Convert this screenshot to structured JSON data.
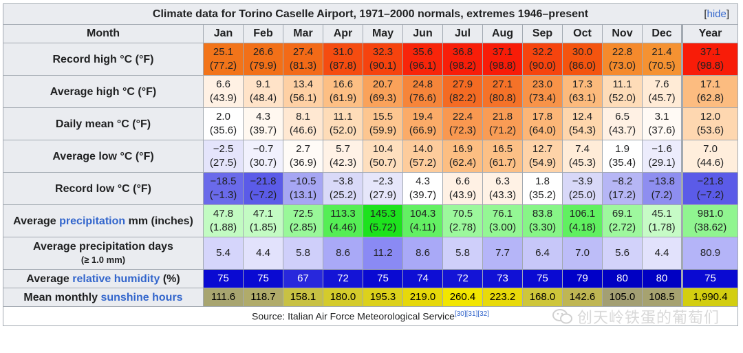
{
  "table": {
    "caption": "Climate data for Torino Caselle Airport, 1971–2000 normals, extremes 1946–present",
    "hide_label": "hide",
    "header": [
      "Month",
      "Jan",
      "Feb",
      "Mar",
      "Apr",
      "May",
      "Jun",
      "Jul",
      "Aug",
      "Sep",
      "Oct",
      "Nov",
      "Dec",
      "Year"
    ],
    "rows": [
      {
        "label_parts": [
          {
            "text": "Record high °C (°F)"
          }
        ],
        "cells": [
          [
            "25.1",
            "(77.2)",
            "#f2741a"
          ],
          [
            "26.6",
            "(79.9)",
            "#f27018"
          ],
          [
            "27.4",
            "(81.3)",
            "#f36a17"
          ],
          [
            "31.0",
            "(87.8)",
            "#f54c10"
          ],
          [
            "32.3",
            "(90.1)",
            "#f6430e"
          ],
          [
            "35.6",
            "(96.1)",
            "#f8250a"
          ],
          [
            "36.8",
            "(98.2)",
            "#f81e09"
          ],
          [
            "37.1",
            "(98.8)",
            "#f81c08"
          ],
          [
            "32.2",
            "(90.0)",
            "#f6440e"
          ],
          [
            "30.0",
            "(86.0)",
            "#f4540f"
          ],
          [
            "22.8",
            "(73.0)",
            "#f58a2c"
          ],
          [
            "21.4",
            "(70.5)",
            "#f59232"
          ],
          [
            "37.1",
            "(98.8)",
            "#f81c08"
          ]
        ]
      },
      {
        "label_parts": [
          {
            "text": "Average high °C (°F)"
          }
        ],
        "cells": [
          [
            "6.6",
            "(43.9)",
            "#fff1e4"
          ],
          [
            "9.1",
            "(48.4)",
            "#ffe3c8"
          ],
          [
            "13.4",
            "(56.1)",
            "#fed0a4"
          ],
          [
            "16.6",
            "(61.9)",
            "#fdbf84"
          ],
          [
            "20.7",
            "(69.3)",
            "#faa25a"
          ],
          [
            "24.8",
            "(76.6)",
            "#f6853a"
          ],
          [
            "27.9",
            "(82.2)",
            "#f46b23"
          ],
          [
            "27.1",
            "(80.8)",
            "#f57228"
          ],
          [
            "23.0",
            "(73.4)",
            "#f89348"
          ],
          [
            "17.3",
            "(63.1)",
            "#fcba7c"
          ],
          [
            "11.1",
            "(52.0)",
            "#fedcb8"
          ],
          [
            "7.6",
            "(45.7)",
            "#ffebd6"
          ],
          [
            "17.1",
            "(62.8)",
            "#fcbc80"
          ]
        ]
      },
      {
        "label_parts": [
          {
            "text": "Daily mean °C (°F)"
          }
        ],
        "cells": [
          [
            "2.0",
            "(35.6)",
            "#ffffff"
          ],
          [
            "4.3",
            "(39.7)",
            "#fff8f0"
          ],
          [
            "8.1",
            "(46.6)",
            "#ffe8d2"
          ],
          [
            "11.1",
            "(52.0)",
            "#fedcb8"
          ],
          [
            "15.5",
            "(59.9)",
            "#fdc690"
          ],
          [
            "19.4",
            "(66.9)",
            "#fbab68"
          ],
          [
            "22.4",
            "(72.3)",
            "#f99850"
          ],
          [
            "21.8",
            "(71.2)",
            "#f99c55"
          ],
          [
            "17.8",
            "(64.0)",
            "#fcb677"
          ],
          [
            "12.4",
            "(54.3)",
            "#fed6ac"
          ],
          [
            "6.5",
            "(43.7)",
            "#fff1e4"
          ],
          [
            "3.1",
            "(37.6)",
            "#fffaf5"
          ],
          [
            "12.0",
            "(53.6)",
            "#fed7b0"
          ]
        ]
      },
      {
        "label_parts": [
          {
            "text": "Average low °C (°F)"
          }
        ],
        "cells": [
          [
            "−2.5",
            "(27.5)",
            "#e4e4fb"
          ],
          [
            "−0.7",
            "(30.7)",
            "#f1f1fd"
          ],
          [
            "2.7",
            "(36.9)",
            "#fffbf7"
          ],
          [
            "5.7",
            "(42.3)",
            "#fff2e6"
          ],
          [
            "10.4",
            "(50.7)",
            "#fedfbe"
          ],
          [
            "14.0",
            "(57.2)",
            "#fdcc9c"
          ],
          [
            "16.9",
            "(62.4)",
            "#fcbe82"
          ],
          [
            "16.5",
            "(61.7)",
            "#fcc086"
          ],
          [
            "12.7",
            "(54.9)",
            "#fed3a8"
          ],
          [
            "7.4",
            "(45.3)",
            "#ffecd8"
          ],
          [
            "1.9",
            "(35.4)",
            "#ffffff"
          ],
          [
            "−1.6",
            "(29.1)",
            "#ececfc"
          ],
          [
            "7.0",
            "(44.6)",
            "#ffeedc"
          ]
        ]
      },
      {
        "label_parts": [
          {
            "text": "Record low °C (°F)"
          }
        ],
        "cells": [
          [
            "−18.5",
            "(−1.3)",
            "#6a6aea"
          ],
          [
            "−21.8",
            "(−7.2)",
            "#5b5be8"
          ],
          [
            "−10.5",
            "(13.1)",
            "#a6a6f3"
          ],
          [
            "−3.8",
            "(25.2)",
            "#d9d9f8"
          ],
          [
            "−2.3",
            "(27.9)",
            "#e6e6fa"
          ],
          [
            "4.3",
            "(39.7)",
            "#ffffff"
          ],
          [
            "6.6",
            "(43.9)",
            "#fff1e4"
          ],
          [
            "6.3",
            "(43.3)",
            "#fff2e5"
          ],
          [
            "1.8",
            "(35.2)",
            "#ffffff"
          ],
          [
            "−3.9",
            "(25.0)",
            "#d8d8f8"
          ],
          [
            "−8.2",
            "(17.2)",
            "#b6b6f5"
          ],
          [
            "−13.8",
            "(7.2)",
            "#8e8ef0"
          ],
          [
            "−21.8",
            "(−7.2)",
            "#5b5be8"
          ]
        ]
      },
      {
        "label_parts": [
          {
            "text": "Average "
          },
          {
            "text": "precipitation",
            "link": true
          },
          {
            "text": " mm (inches)"
          }
        ],
        "cells": [
          [
            "47.8",
            "(1.88)",
            "#c2fbc2"
          ],
          [
            "47.1",
            "(1.85)",
            "#c3fbc3"
          ],
          [
            "72.5",
            "(2.85)",
            "#99f899"
          ],
          [
            "113.3",
            "(4.46)",
            "#55ee55"
          ],
          [
            "145.3",
            "(5.72)",
            "#1de21d"
          ],
          [
            "104.3",
            "(4.11)",
            "#63f063"
          ],
          [
            "70.5",
            "(2.78)",
            "#9cf89c"
          ],
          [
            "76.1",
            "(3.00)",
            "#94f794"
          ],
          [
            "83.8",
            "(3.30)",
            "#87f587"
          ],
          [
            "106.1",
            "(4.18)",
            "#60f060"
          ],
          [
            "69.1",
            "(2.72)",
            "#9ef89e"
          ],
          [
            "45.1",
            "(1.78)",
            "#c6fbc6"
          ],
          [
            "981.0",
            "(38.62)",
            "#90f590"
          ]
        ]
      },
      {
        "label_parts": [
          {
            "text": "Average precipitation days"
          }
        ],
        "label_small": "(≥ 1.0 mm)",
        "cells": [
          [
            "5.4",
            "",
            "#d5d5fb"
          ],
          [
            "4.4",
            "",
            "#e2e2fc"
          ],
          [
            "5.8",
            "",
            "#cfcffa"
          ],
          [
            "8.6",
            "",
            "#a9a9f7"
          ],
          [
            "11.2",
            "",
            "#8a8af4"
          ],
          [
            "8.6",
            "",
            "#a9a9f7"
          ],
          [
            "5.8",
            "",
            "#cfcffa"
          ],
          [
            "7.7",
            "",
            "#b5b5f8"
          ],
          [
            "6.4",
            "",
            "#c7c7f9"
          ],
          [
            "7.0",
            "",
            "#bdbdf8"
          ],
          [
            "5.6",
            "",
            "#d2d2fa"
          ],
          [
            "4.4",
            "",
            "#e2e2fc"
          ],
          [
            "80.9",
            "",
            "#b4b4f8"
          ]
        ]
      }
    ],
    "humidity": {
      "label_parts": [
        {
          "text": "Average "
        },
        {
          "text": "relative humidity",
          "link": true
        },
        {
          "text": " (%)"
        }
      ],
      "values": [
        "75",
        "75",
        "67",
        "72",
        "75",
        "74",
        "72",
        "73",
        "75",
        "79",
        "80",
        "80",
        "75"
      ],
      "colors": [
        "#0a0ad2",
        "#0a0ad2",
        "#2828dc",
        "#1414d6",
        "#0a0ad2",
        "#0e0ed4",
        "#1414d6",
        "#1111d5",
        "#0a0ad2",
        "#0000c8",
        "#0000c3",
        "#0000c3",
        "#0a0ad2"
      ]
    },
    "sunshine": {
      "label_parts": [
        {
          "text": "Mean monthly "
        },
        {
          "text": "sunshine hours",
          "link": true
        }
      ],
      "values": [
        "111.6",
        "118.7",
        "158.1",
        "180.0",
        "195.3",
        "219.0",
        "260.4",
        "223.2",
        "168.0",
        "142.6",
        "105.0",
        "108.5",
        "1,990.4"
      ],
      "colors": [
        "#a8a570",
        "#b0ab6a",
        "#c8c143",
        "#d4cb2b",
        "#dcd11b",
        "#e6d80a",
        "#f2e600",
        "#e8da0a",
        "#cec63a",
        "#bfb653",
        "#a39f73",
        "#a6a270",
        "#d3ce10"
      ]
    },
    "source": {
      "text": "Source: Italian Air Force Meteorological Service",
      "refs": "[30][31][32]",
      "watermark": "创天岭铁蛋的葡萄们"
    }
  }
}
